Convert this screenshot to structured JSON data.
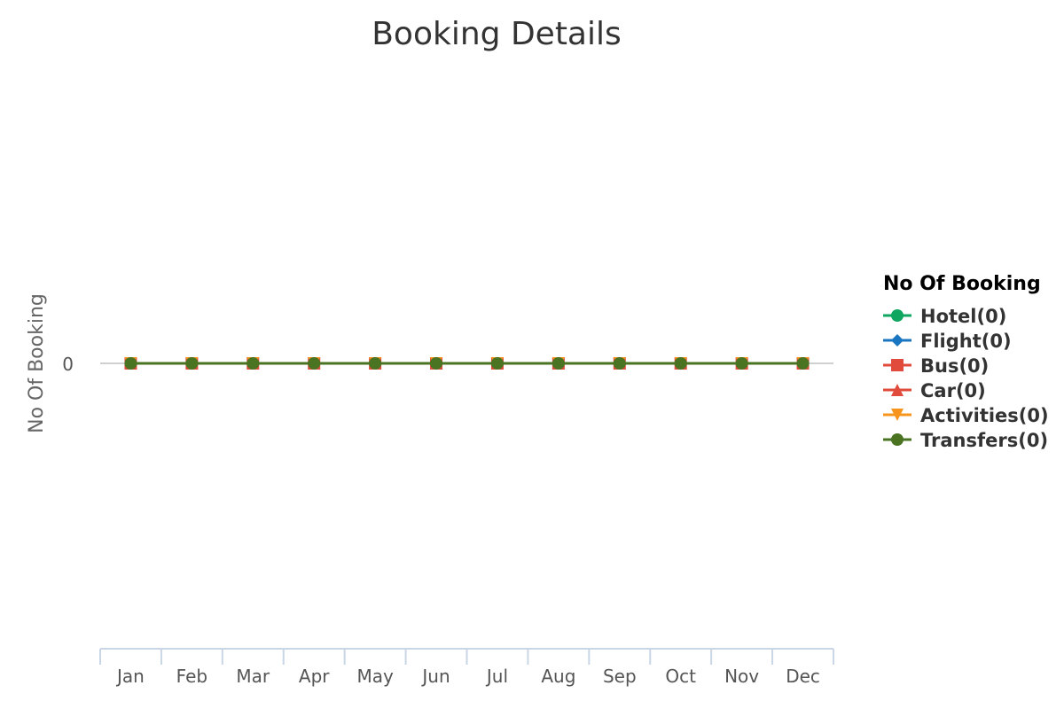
{
  "chart_data": {
    "type": "line",
    "title": "Booking Details",
    "xlabel": "",
    "ylabel": "No Of Booking",
    "categories": [
      "Jan",
      "Feb",
      "Mar",
      "Apr",
      "May",
      "Jun",
      "Jul",
      "Aug",
      "Sep",
      "Oct",
      "Nov",
      "Dec"
    ],
    "y_ticks": [
      0
    ],
    "grid": false,
    "legend": {
      "title": "No Of Booking",
      "placement": "right"
    },
    "series": [
      {
        "name": "Hotel(0)",
        "color": "#0fa760",
        "marker": "circle",
        "values": [
          0,
          0,
          0,
          0,
          0,
          0,
          0,
          0,
          0,
          0,
          0,
          0
        ]
      },
      {
        "name": "Flight(0)",
        "color": "#1a76c0",
        "marker": "diamond",
        "values": [
          0,
          0,
          0,
          0,
          0,
          0,
          0,
          0,
          0,
          0,
          0,
          0
        ]
      },
      {
        "name": "Bus(0)",
        "color": "#e14b3b",
        "marker": "square",
        "values": [
          0,
          0,
          0,
          0,
          0,
          0,
          0,
          0,
          0,
          0,
          0,
          0
        ]
      },
      {
        "name": "Car(0)",
        "color": "#e14b3b",
        "marker": "triangle-up",
        "values": [
          0,
          0,
          0,
          0,
          0,
          0,
          0,
          0,
          0,
          0,
          0,
          0
        ]
      },
      {
        "name": "Activities(0)",
        "color": "#f7941d",
        "marker": "triangle-down",
        "values": [
          0,
          0,
          0,
          0,
          0,
          0,
          0,
          0,
          0,
          0,
          0,
          0
        ]
      },
      {
        "name": "Transfers(0)",
        "color": "#4a7322",
        "marker": "circle",
        "values": [
          0,
          0,
          0,
          0,
          0,
          0,
          0,
          0,
          0,
          0,
          0,
          0
        ]
      }
    ]
  }
}
